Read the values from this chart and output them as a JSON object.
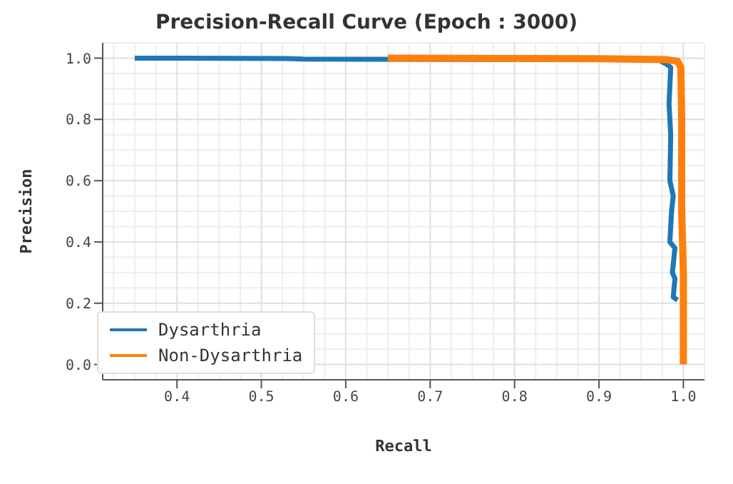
{
  "chart_data": {
    "type": "line",
    "title": "Precision-Recall Curve (Epoch : 3000)",
    "xlabel": "Recall",
    "ylabel": "Precision",
    "series": [
      {
        "name": "Dysarthria",
        "color": "#1f77b4",
        "x": [
          0.35,
          0.53,
          0.55,
          0.97,
          0.98,
          0.985,
          0.983,
          0.985,
          0.984,
          0.988,
          0.986,
          0.984,
          0.99,
          0.987,
          0.99,
          0.988,
          0.993
        ],
        "values": [
          1.0,
          0.999,
          0.997,
          0.995,
          0.98,
          0.97,
          0.85,
          0.75,
          0.6,
          0.55,
          0.5,
          0.4,
          0.38,
          0.3,
          0.28,
          0.22,
          0.21
        ]
      },
      {
        "name": "Non-Dysarthria",
        "color": "#ff7f0e",
        "x": [
          0.65,
          0.9,
          0.98,
          0.993,
          0.997,
          0.998,
          0.998,
          1.0,
          1.0
        ],
        "values": [
          1.0,
          0.998,
          0.995,
          0.99,
          0.97,
          0.8,
          0.5,
          0.3,
          0.0
        ]
      }
    ],
    "xlim": [
      0.312,
      1.025
    ],
    "ylim": [
      -0.05,
      1.05
    ],
    "xticks": [
      0.4,
      0.5,
      0.6,
      0.7,
      0.8,
      0.9,
      {
        "value": 1.0,
        "label": "1.0"
      }
    ],
    "yticks": [
      {
        "value": 0,
        "label": "0.0"
      },
      0.2,
      0.4,
      0.6,
      0.8,
      {
        "value": 1.0,
        "label": "1.0"
      }
    ],
    "grid": true,
    "legend": "bottom left",
    "marker": "none",
    "line_style": "solid"
  }
}
